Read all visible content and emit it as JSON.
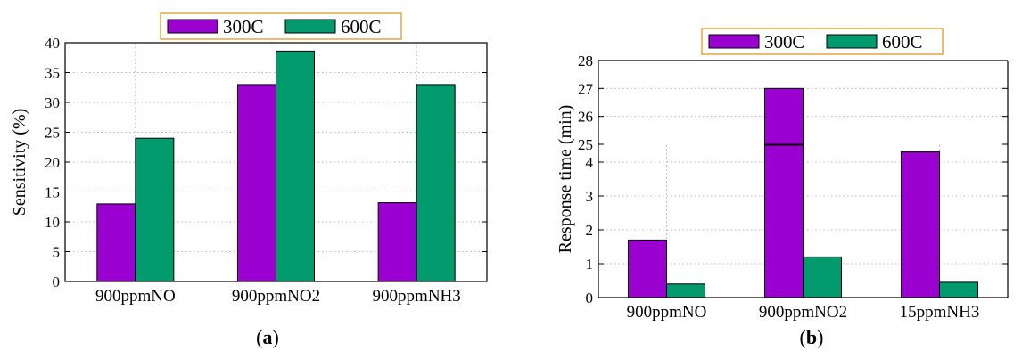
{
  "chart_data": [
    {
      "type": "bar",
      "caption_open": "(",
      "caption_letter": "a",
      "caption_close": ")",
      "categories": [
        "900ppmNO",
        "900ppmNO2",
        "900ppmNH3"
      ],
      "series": [
        {
          "name": "300C",
          "values": [
            13,
            33,
            13.2
          ],
          "color": "#9a00cf"
        },
        {
          "name": "600C",
          "values": [
            24,
            38.6,
            33
          ],
          "color": "#009a6c"
        }
      ],
      "ylabel": "Sensitivity (%)",
      "ylim": [
        0,
        40
      ],
      "yticks": [
        0,
        5,
        10,
        15,
        20,
        25,
        30,
        35,
        40
      ],
      "grid": true,
      "legend_position": "top-center"
    },
    {
      "type": "bar",
      "broken_axis": true,
      "caption_open": "(",
      "caption_letter": "b",
      "caption_close": ")",
      "categories": [
        "900ppmNO",
        "900ppmNO2",
        "15ppmNH3"
      ],
      "series": [
        {
          "name": "300C",
          "values": [
            1.7,
            27,
            4.3
          ],
          "color": "#9a00cf"
        },
        {
          "name": "600C",
          "values": [
            0.4,
            1.2,
            0.45
          ],
          "color": "#009a6c"
        }
      ],
      "ylabel": "Response time (min)",
      "ylim_lower": [
        0,
        4.5
      ],
      "ylim_upper": [
        25,
        28
      ],
      "yticks_lower": [
        0,
        1,
        2,
        3,
        4
      ],
      "yticks_upper": [
        25,
        26,
        27,
        28
      ],
      "grid": true,
      "legend_position": "top-center"
    }
  ]
}
